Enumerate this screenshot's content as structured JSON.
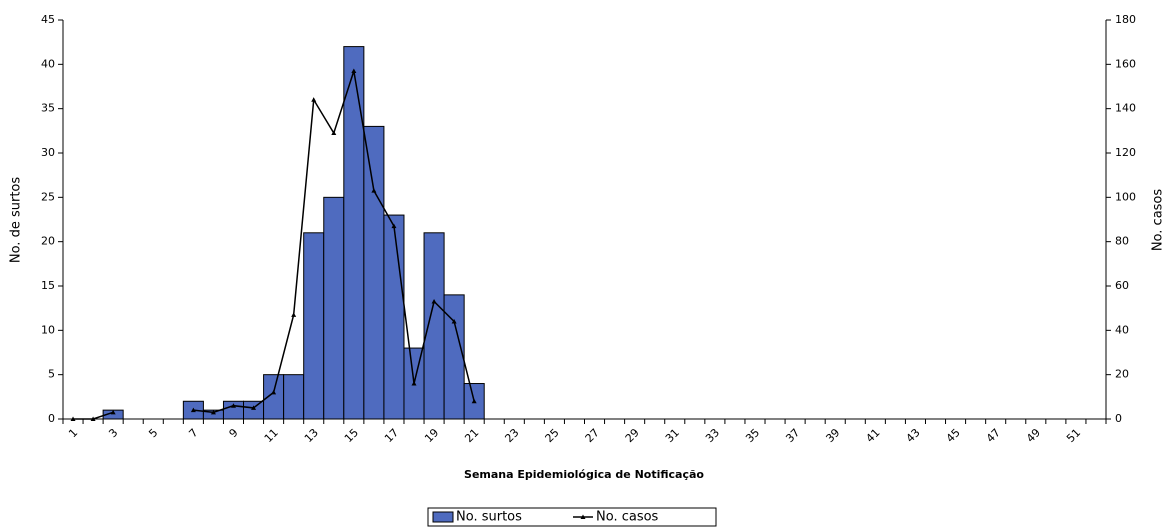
{
  "chart_data": {
    "type": "bar-line",
    "x_label": "Semana Epidemiológica de Notificação",
    "y_label": "No. de surtos",
    "y2_label": "No. casos",
    "categories": [
      "1",
      null,
      "3",
      null,
      "5",
      null,
      "7",
      null,
      "9",
      null,
      "11",
      null,
      "13",
      null,
      "15",
      null,
      "17",
      null,
      "19",
      null,
      "21",
      null,
      "23",
      null,
      "25",
      null,
      "27",
      null,
      "29",
      null,
      "31",
      null,
      "33",
      null,
      "35",
      null,
      "37",
      null,
      "39",
      null,
      "41",
      null,
      "43",
      null,
      "45",
      null,
      "47",
      null,
      "49",
      null,
      "51",
      null
    ],
    "series": [
      {
        "name": "No. surtos",
        "type": "bar",
        "color": "#4f6bbf",
        "values": [
          0,
          0,
          1,
          0,
          0,
          0,
          2,
          1,
          2,
          2,
          5,
          5,
          21,
          25,
          42,
          33,
          23,
          8,
          21,
          14,
          4,
          0,
          0,
          0,
          0,
          0,
          0,
          0,
          0,
          0,
          0,
          0,
          0,
          0,
          0,
          0,
          0,
          0,
          0,
          0,
          0,
          0,
          0,
          0,
          0,
          0,
          0,
          0,
          0,
          0,
          0,
          0
        ]
      },
      {
        "name": "No. casos",
        "type": "line",
        "color": "#000000",
        "axis": "y2",
        "values": [
          0,
          0,
          3,
          null,
          null,
          null,
          4,
          3,
          6,
          5,
          12,
          47,
          144,
          129,
          157,
          103,
          87,
          16,
          53,
          44,
          8,
          null,
          null,
          null,
          null,
          null,
          null,
          null,
          null,
          null,
          null,
          null,
          null,
          null,
          null,
          null,
          null,
          null,
          null,
          null,
          null,
          null,
          null,
          null,
          null,
          null,
          null,
          null,
          null,
          null,
          null,
          null
        ]
      }
    ],
    "ylim": [
      0,
      45
    ],
    "yticks": [
      0,
      5,
      10,
      15,
      20,
      25,
      30,
      35,
      40,
      45
    ],
    "y2lim": [
      0,
      180
    ],
    "y2ticks": [
      0,
      20,
      40,
      60,
      80,
      100,
      120,
      140,
      160,
      180
    ]
  }
}
